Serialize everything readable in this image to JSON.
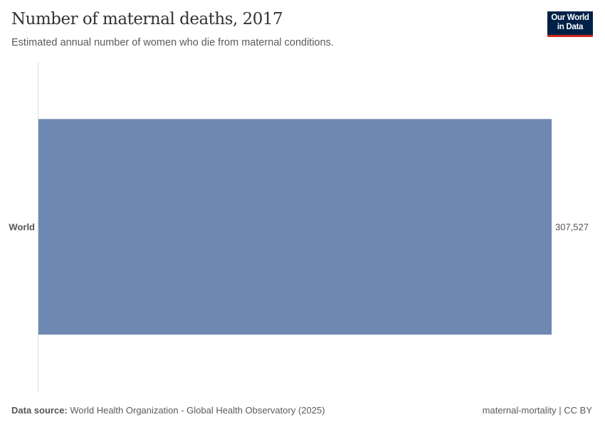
{
  "header": {
    "title": "Number of maternal deaths, 2017",
    "subtitle": "Estimated annual number of women who die from maternal conditions.",
    "logo_text": "Our World in Data"
  },
  "chart_data": {
    "type": "bar",
    "orientation": "horizontal",
    "categories": [
      "World"
    ],
    "values": [
      307527
    ],
    "value_labels": [
      "307,527"
    ],
    "bar_color": "#6f88b1",
    "title": "Number of maternal deaths, 2017",
    "xlim": [
      0,
      307527
    ]
  },
  "footer": {
    "source_label": "Data source:",
    "source_text": "World Health Organization - Global Health Observatory (2025)",
    "license": "maternal-mortality | CC BY"
  },
  "colors": {
    "logo_bg": "#002147",
    "logo_accent": "#ce261e"
  }
}
